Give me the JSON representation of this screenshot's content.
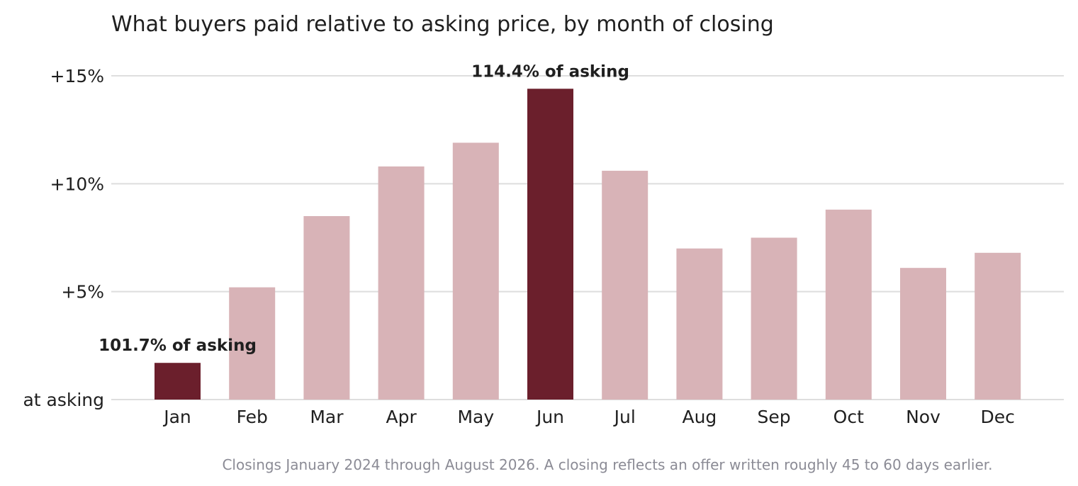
{
  "chart_data": {
    "type": "bar",
    "title": "What buyers paid relative to asking price, by month of closing",
    "xlabel": "",
    "ylabel": "",
    "categories": [
      "Jan",
      "Feb",
      "Mar",
      "Apr",
      "May",
      "Jun",
      "Jul",
      "Aug",
      "Sep",
      "Oct",
      "Nov",
      "Dec"
    ],
    "values": [
      1.7,
      5.2,
      8.5,
      10.8,
      11.9,
      14.4,
      10.6,
      7.0,
      7.5,
      8.8,
      6.1,
      6.8
    ],
    "ylim": [
      0,
      15.5
    ],
    "yticks": [
      {
        "value": 0,
        "label": "at asking"
      },
      {
        "value": 5,
        "label": "+5%"
      },
      {
        "value": 10,
        "label": "+10%"
      },
      {
        "value": 15,
        "label": "+15%"
      }
    ],
    "grid": true,
    "legend": "none",
    "highlight_indices": [
      0,
      5
    ],
    "colors": {
      "highlight": "#6b1f2c",
      "default": "#d8b3b7",
      "grid": "#dedede",
      "text": "#1f1f1f",
      "note": "#8b8b95"
    },
    "annotations": [
      {
        "index": 0,
        "text": "101.7% of asking"
      },
      {
        "index": 5,
        "text": "114.4% of asking"
      }
    ],
    "footnote": "Closings January 2024 through August 2026. A closing reflects an offer written roughly 45 to 60 days earlier."
  }
}
